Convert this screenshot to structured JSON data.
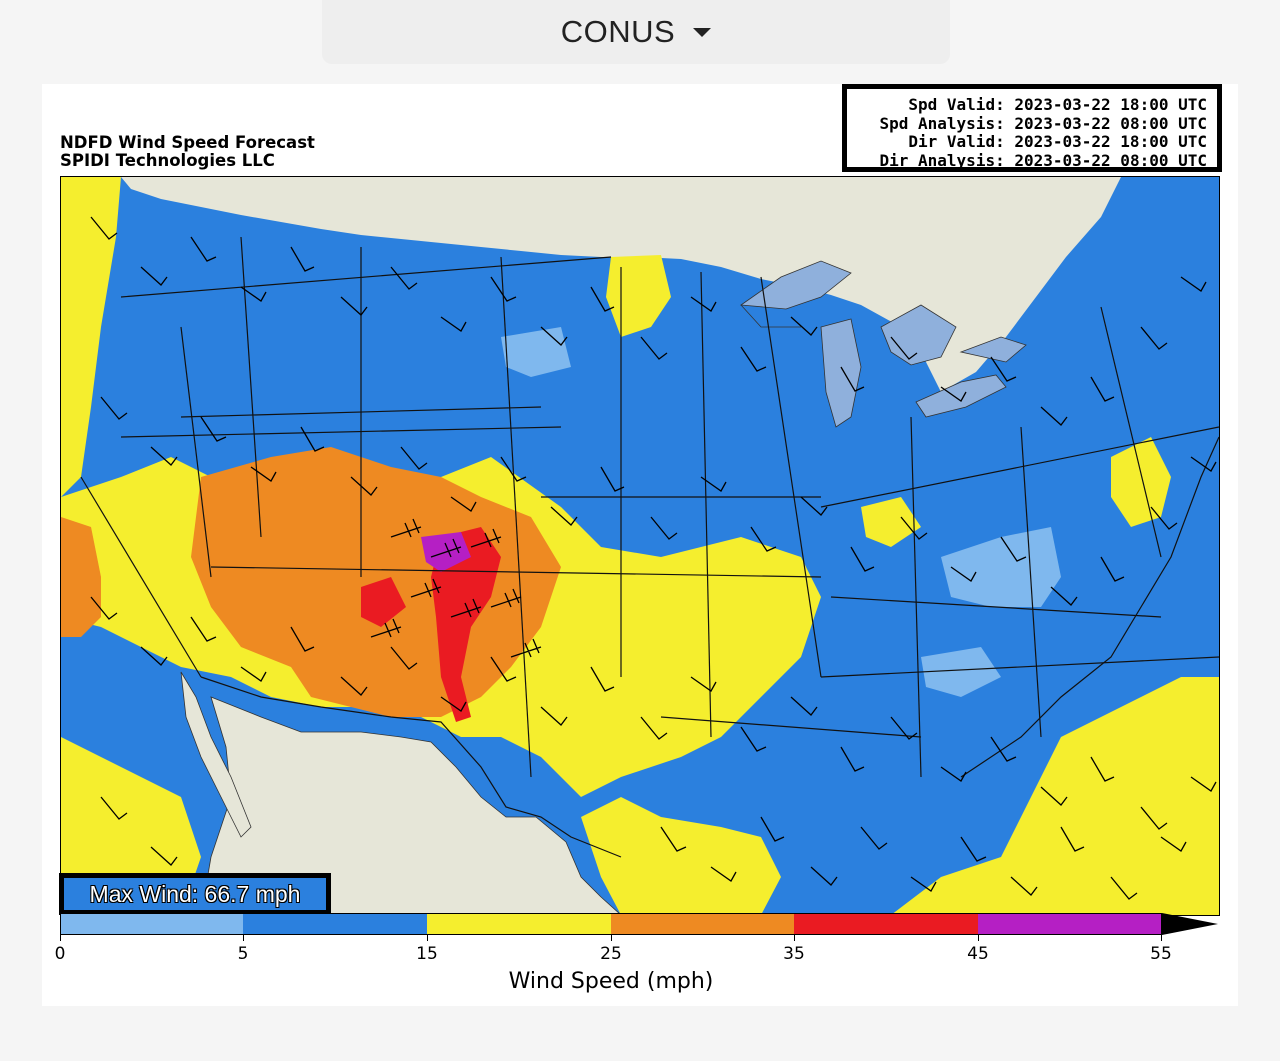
{
  "region_selector": {
    "label": "CONUS"
  },
  "figure": {
    "title_line1": "NDFD Wind Speed Forecast",
    "title_line2": "SPIDI Technologies LLC",
    "valid_lines": [
      "Spd Valid: 2023-03-22 18:00 UTC",
      "Spd Analysis: 2023-03-22 08:00 UTC",
      "Dir Valid: 2023-03-22 18:00 UTC",
      "Dir Analysis: 2023-03-22 08:00 UTC"
    ],
    "max_wind": "Max Wind: 66.7 mph"
  },
  "colorbar": {
    "label": "Wind Speed (mph)",
    "ticks": [
      "0",
      "5",
      "15",
      "25",
      "35",
      "45",
      "55"
    ],
    "bins": [
      {
        "range": "0-5",
        "color": "#7fb8ee"
      },
      {
        "range": "5-15",
        "color": "#2b80de"
      },
      {
        "range": "15-25",
        "color": "#f5ee2e"
      },
      {
        "range": "25-35",
        "color": "#ee8a22"
      },
      {
        "range": "35-45",
        "color": "#ea1b22"
      },
      {
        "range": "45-55",
        "color": "#b51fc4"
      },
      {
        "range": ">55",
        "color": "#000000"
      }
    ]
  },
  "map": {
    "land_outside_color": "#e6e6d8",
    "water_color": "#8fb0dc"
  }
}
